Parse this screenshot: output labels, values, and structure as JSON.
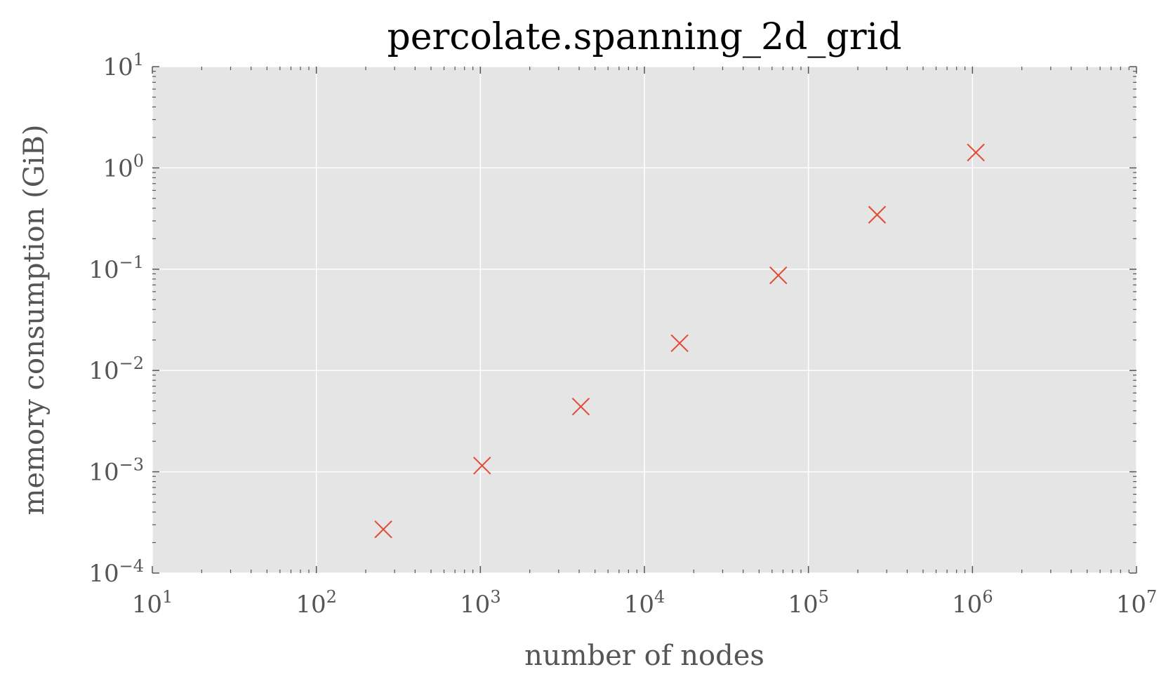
{
  "chart_data": {
    "type": "scatter",
    "title": "percolate.spanning_2d_grid",
    "xlabel": "number of nodes",
    "ylabel": "memory consumption (GiB)",
    "xscale": "log",
    "yscale": "log",
    "xlim": [
      10,
      10000000
    ],
    "ylim": [
      0.0001,
      10
    ],
    "grid": true,
    "legend": "none",
    "x_ticks": [
      {
        "value": 10,
        "base": "10",
        "exp": "1"
      },
      {
        "value": 100,
        "base": "10",
        "exp": "2"
      },
      {
        "value": 1000,
        "base": "10",
        "exp": "3"
      },
      {
        "value": 10000,
        "base": "10",
        "exp": "4"
      },
      {
        "value": 100000,
        "base": "10",
        "exp": "5"
      },
      {
        "value": 1000000,
        "base": "10",
        "exp": "6"
      },
      {
        "value": 10000000,
        "base": "10",
        "exp": "7"
      }
    ],
    "y_ticks": [
      {
        "value": 0.0001,
        "base": "10",
        "exp": "−4"
      },
      {
        "value": 0.001,
        "base": "10",
        "exp": "−3"
      },
      {
        "value": 0.01,
        "base": "10",
        "exp": "−2"
      },
      {
        "value": 0.1,
        "base": "10",
        "exp": "−1"
      },
      {
        "value": 1,
        "base": "10",
        "exp": "0"
      },
      {
        "value": 10,
        "base": "10",
        "exp": "1"
      }
    ],
    "series": [
      {
        "marker": "x",
        "color": "#e24a33",
        "x": [
          256,
          1024,
          4096,
          16384,
          65536,
          262144,
          1048576
        ],
        "y": [
          0.00027,
          0.00115,
          0.0044,
          0.0186,
          0.087,
          0.345,
          1.42
        ]
      }
    ]
  },
  "colors": {
    "plot_background": "#e5e5e5",
    "grid": "#ffffff",
    "marker": "#e24a33",
    "tick": "#555555"
  }
}
